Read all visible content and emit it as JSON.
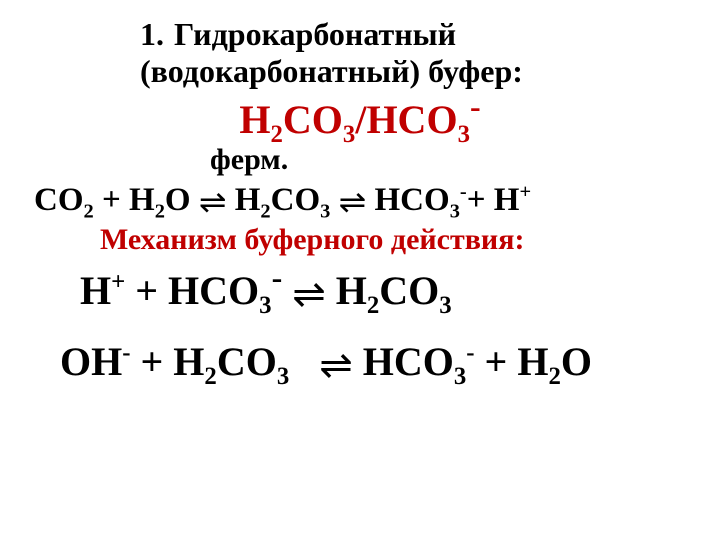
{
  "colors": {
    "accent": "#c00000",
    "text": "#000000",
    "background": "#ffffff"
  },
  "fonts": {
    "family": "Times New Roman",
    "title_size_pt": 32,
    "formula_size_pt": 40,
    "eq_size_pt": 33,
    "big_eq_size_pt": 40
  },
  "list_number": "1.",
  "title_line1": "Гидрокарбонатный",
  "title_line2": "(водокарбонатный) буфер:",
  "buffer": {
    "left": "H",
    "left_sub": "2",
    "left_tail": "CO",
    "left_tail_sub": "3",
    "sep": "/",
    "right": "HCO",
    "right_sub": "3",
    "right_sup": "-"
  },
  "ferm_label": "ферм.",
  "equation1": {
    "t1": "CO",
    "s1": "2",
    "plus1": " + ",
    "t2": "H",
    "s2": "2",
    "t2b": "O ",
    "t3": " H",
    "s3": "2",
    "t3b": "CO",
    "s3b": "3",
    "sp3": " ",
    "t4": " HCO",
    "s4": "3",
    "sup4": "-",
    "plus2": "+ H",
    "supH": "+"
  },
  "mechanism_title": "Механизм буферного действия:",
  "equation2": {
    "l1": "H",
    "l1sup": "+",
    "plus": " + HCO",
    "sub1": "3",
    "sup1": "-",
    "sp": " ",
    "r1": " H",
    "rsub1": "2",
    "r2": "CO",
    "rsub2": "3"
  },
  "equation3": {
    "l1": "OH",
    "l1sup": "-",
    "plus": " + H",
    "sub1": "2",
    "l2": "CO",
    "sub2": "3",
    "sp": "   ",
    "r1": "  HCO",
    "rsub1": "3",
    "rsup1": "-",
    "plus2": " + H",
    "rsub2": "2",
    "r2": "O"
  },
  "arrow": {
    "top": "⇀",
    "bottom": "↽"
  }
}
